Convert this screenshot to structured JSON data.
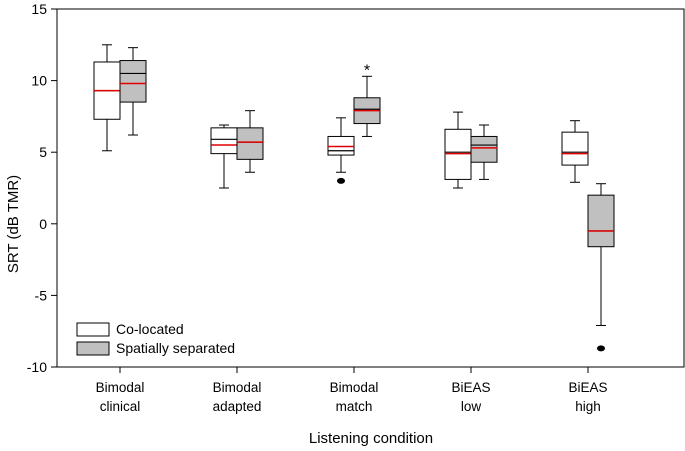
{
  "chart_data": {
    "type": "boxplot",
    "title": "",
    "xlabel": "Listening condition",
    "ylabel": "SRT (dB TMR)",
    "ylim": [
      -10,
      15
    ],
    "yticks": [
      -10,
      -5,
      0,
      5,
      10,
      15
    ],
    "ytick_labels": [
      "-10",
      "-5",
      "0",
      "5",
      "10",
      "15"
    ],
    "grid": false,
    "legend_position": "bottom-left",
    "colors": {
      "colocated_fill": "#ffffff",
      "separated_fill": "#c0c0c0",
      "median": "#000000",
      "mean": "#e00000",
      "stroke": "#000000"
    },
    "categories": [
      {
        "line1": "Bimodal",
        "line2": "clinical"
      },
      {
        "line1": "Bimodal",
        "line2": "adapted"
      },
      {
        "line1": "Bimodal",
        "line2": "match"
      },
      {
        "line1": "BiEAS",
        "line2": "low"
      },
      {
        "line1": "BiEAS",
        "line2": "high"
      }
    ],
    "series": [
      {
        "name": "Co-located",
        "boxes": [
          {
            "whisker_low": 5.1,
            "q1": 7.3,
            "median": 9.3,
            "mean": 9.3,
            "q3": 11.3,
            "whisker_high": 12.5,
            "outliers": []
          },
          {
            "whisker_low": 2.5,
            "q1": 4.9,
            "median": 5.9,
            "mean": 5.5,
            "q3": 6.7,
            "whisker_high": 6.9,
            "outliers": []
          },
          {
            "whisker_low": 3.6,
            "q1": 4.8,
            "median": 5.1,
            "mean": 5.4,
            "q3": 6.1,
            "whisker_high": 7.4,
            "outliers": [
              3.0
            ]
          },
          {
            "whisker_low": 2.5,
            "q1": 3.1,
            "median": 5.0,
            "mean": 4.9,
            "q3": 6.6,
            "whisker_high": 7.8,
            "outliers": []
          },
          {
            "whisker_low": 2.9,
            "q1": 4.1,
            "median": 5.0,
            "mean": 4.9,
            "q3": 6.4,
            "whisker_high": 7.2,
            "outliers": []
          }
        ]
      },
      {
        "name": "Spatially separated",
        "boxes": [
          {
            "whisker_low": 6.2,
            "q1": 8.5,
            "median": 10.5,
            "mean": 9.8,
            "q3": 11.4,
            "whisker_high": 12.3,
            "outliers": []
          },
          {
            "whisker_low": 3.6,
            "q1": 4.5,
            "median": 5.7,
            "mean": 5.7,
            "q3": 6.7,
            "whisker_high": 7.9,
            "outliers": []
          },
          {
            "whisker_low": 6.1,
            "q1": 7.0,
            "median": 8.0,
            "mean": 7.9,
            "q3": 8.8,
            "whisker_high": 10.3,
            "outliers": []
          },
          {
            "whisker_low": 3.1,
            "q1": 4.3,
            "median": 5.5,
            "mean": 5.3,
            "q3": 6.1,
            "whisker_high": 6.9,
            "outliers": []
          },
          {
            "whisker_low": -7.1,
            "q1": -1.6,
            "median": -0.5,
            "mean": -0.5,
            "q3": 2.0,
            "whisker_high": 2.8,
            "outliers": [
              -8.7
            ]
          }
        ]
      }
    ],
    "annotations": [
      {
        "text": "*",
        "category_index": 2,
        "series_index": 1,
        "y": 11.2
      }
    ]
  }
}
